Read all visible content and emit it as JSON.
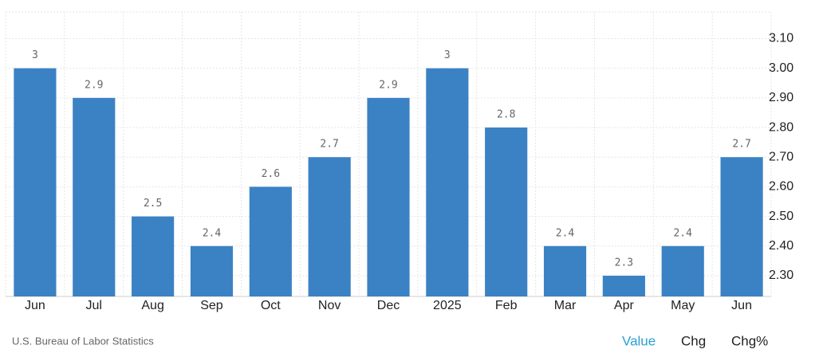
{
  "chart_data": {
    "type": "bar",
    "categories": [
      "Jun",
      "Jul",
      "Aug",
      "Sep",
      "Oct",
      "Nov",
      "Dec",
      "2025",
      "Feb",
      "Mar",
      "Apr",
      "May",
      "Jun"
    ],
    "values": [
      3,
      2.9,
      2.5,
      2.4,
      2.6,
      2.7,
      2.9,
      3,
      2.8,
      2.4,
      2.3,
      2.4,
      2.7
    ],
    "color": "#3b82c4",
    "ylim": [
      2.23,
      3.19
    ],
    "yticks": [
      {
        "value": 2.3,
        "label": "2.30"
      },
      {
        "value": 2.4,
        "label": "2.40"
      },
      {
        "value": 2.5,
        "label": "2.50"
      },
      {
        "value": 2.6,
        "label": "2.60"
      },
      {
        "value": 2.7,
        "label": "2.70"
      },
      {
        "value": 2.8,
        "label": "2.80"
      },
      {
        "value": 2.9,
        "label": "2.90"
      },
      {
        "value": 3.0,
        "label": "3.00"
      },
      {
        "value": 3.1,
        "label": "3.10"
      }
    ],
    "grid": true
  },
  "source": "U.S. Bureau of Labor Statistics",
  "tabs": [
    "Value",
    "Chg",
    "Chg%"
  ]
}
